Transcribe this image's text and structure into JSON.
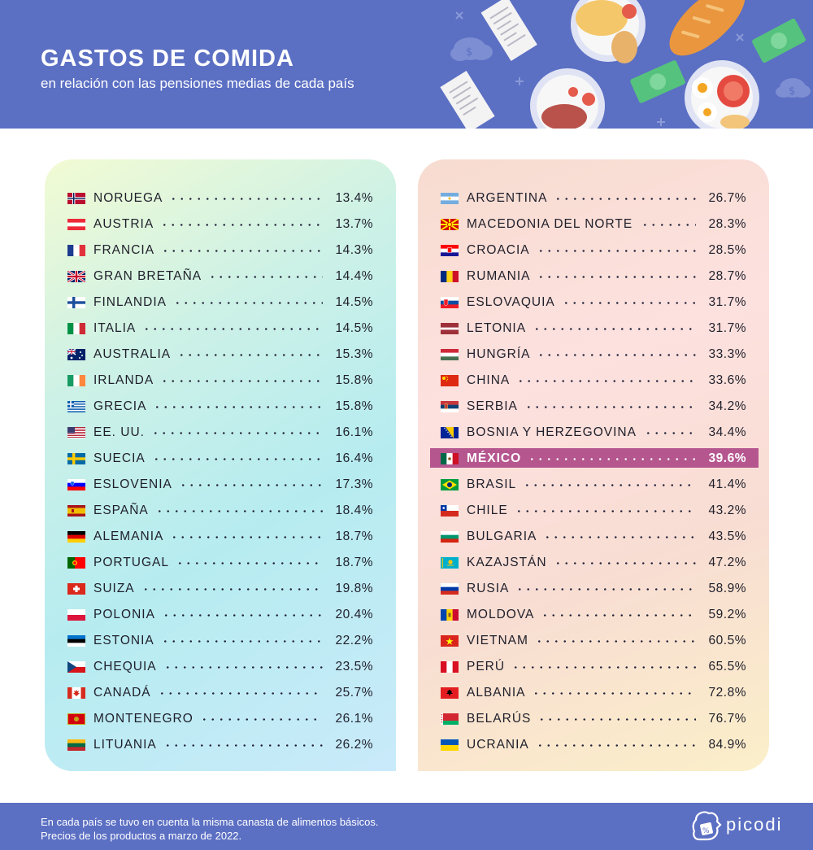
{
  "header": {
    "title": "GASTOS DE COMIDA",
    "subtitle": "en relación con las pensiones medias de cada país",
    "background": "#5b6fc3"
  },
  "footer": {
    "line1": "En cada país se tuvo en cuenta la misma canasta de alimentos básicos.",
    "line2": "Precios de los productos a marzo de 2022.",
    "brand": "picodi"
  },
  "highlight_color": "#b5568f",
  "chart_data": {
    "type": "table",
    "highlighted": "MÉXICO",
    "columns": [
      {
        "rows": [
          {
            "country": "NORUEGA",
            "value": "13.4%",
            "flag": "norway-flag"
          },
          {
            "country": "AUSTRIA",
            "value": "13.7%",
            "flag": "austria-flag"
          },
          {
            "country": "FRANCIA",
            "value": "14.3%",
            "flag": "france-flag"
          },
          {
            "country": "GRAN BRETAÑA",
            "value": "14.4%",
            "flag": "uk-flag"
          },
          {
            "country": "FINLANDIA",
            "value": "14.5%",
            "flag": "finland-flag"
          },
          {
            "country": "ITALIA",
            "value": "14.5%",
            "flag": "italy-flag"
          },
          {
            "country": "AUSTRALIA",
            "value": "15.3%",
            "flag": "australia-flag"
          },
          {
            "country": "IRLANDA",
            "value": "15.8%",
            "flag": "ireland-flag"
          },
          {
            "country": "GRECIA",
            "value": "15.8%",
            "flag": "greece-flag"
          },
          {
            "country": "EE. UU.",
            "value": "16.1%",
            "flag": "usa-flag"
          },
          {
            "country": "SUECIA",
            "value": "16.4%",
            "flag": "sweden-flag"
          },
          {
            "country": "ESLOVENIA",
            "value": "17.3%",
            "flag": "slovenia-flag"
          },
          {
            "country": "ESPAÑA",
            "value": "18.4%",
            "flag": "spain-flag"
          },
          {
            "country": "ALEMANIA",
            "value": "18.7%",
            "flag": "germany-flag"
          },
          {
            "country": "PORTUGAL",
            "value": "18.7%",
            "flag": "portugal-flag"
          },
          {
            "country": "SUIZA",
            "value": "19.8%",
            "flag": "switzerland-flag"
          },
          {
            "country": "POLONIA",
            "value": "20.4%",
            "flag": "poland-flag"
          },
          {
            "country": "ESTONIA",
            "value": "22.2%",
            "flag": "estonia-flag"
          },
          {
            "country": "CHEQUIA",
            "value": "23.5%",
            "flag": "czechia-flag"
          },
          {
            "country": "CANADÁ",
            "value": "25.7%",
            "flag": "canada-flag"
          },
          {
            "country": "MONTENEGRO",
            "value": "26.1%",
            "flag": "montenegro-flag"
          },
          {
            "country": "LITUANIA",
            "value": "26.2%",
            "flag": "lithuania-flag"
          }
        ]
      },
      {
        "rows": [
          {
            "country": "ARGENTINA",
            "value": "26.7%",
            "flag": "argentina-flag"
          },
          {
            "country": "MACEDONIA DEL NORTE",
            "value": "28.3%",
            "flag": "north-macedonia-flag"
          },
          {
            "country": "CROACIA",
            "value": "28.5%",
            "flag": "croatia-flag"
          },
          {
            "country": "RUMANIA",
            "value": "28.7%",
            "flag": "romania-flag"
          },
          {
            "country": "ESLOVAQUIA",
            "value": "31.7%",
            "flag": "slovakia-flag"
          },
          {
            "country": "LETONIA",
            "value": "31.7%",
            "flag": "latvia-flag"
          },
          {
            "country": "HUNGRÍA",
            "value": "33.3%",
            "flag": "hungary-flag"
          },
          {
            "country": "CHINA",
            "value": "33.6%",
            "flag": "china-flag"
          },
          {
            "country": "SERBIA",
            "value": "34.2%",
            "flag": "serbia-flag"
          },
          {
            "country": "BOSNIA Y HERZEGOVINA",
            "value": "34.4%",
            "flag": "bosnia-flag"
          },
          {
            "country": "MÉXICO",
            "value": "39.6%",
            "flag": "mexico-flag"
          },
          {
            "country": "BRASIL",
            "value": "41.4%",
            "flag": "brazil-flag"
          },
          {
            "country": "CHILE",
            "value": "43.2%",
            "flag": "chile-flag"
          },
          {
            "country": "BULGARIA",
            "value": "43.5%",
            "flag": "bulgaria-flag"
          },
          {
            "country": "KAZAJSTÁN",
            "value": "47.2%",
            "flag": "kazakhstan-flag"
          },
          {
            "country": "RUSIA",
            "value": "58.9%",
            "flag": "russia-flag"
          },
          {
            "country": "MOLDOVA",
            "value": "59.2%",
            "flag": "moldova-flag"
          },
          {
            "country": "VIETNAM",
            "value": "60.5%",
            "flag": "vietnam-flag"
          },
          {
            "country": "PERÚ",
            "value": "65.5%",
            "flag": "peru-flag"
          },
          {
            "country": "ALBANIA",
            "value": "72.8%",
            "flag": "albania-flag"
          },
          {
            "country": "BELARÚS",
            "value": "76.7%",
            "flag": "belarus-flag"
          },
          {
            "country": "UCRANIA",
            "value": "84.9%",
            "flag": "ukraine-flag"
          }
        ]
      }
    ]
  }
}
